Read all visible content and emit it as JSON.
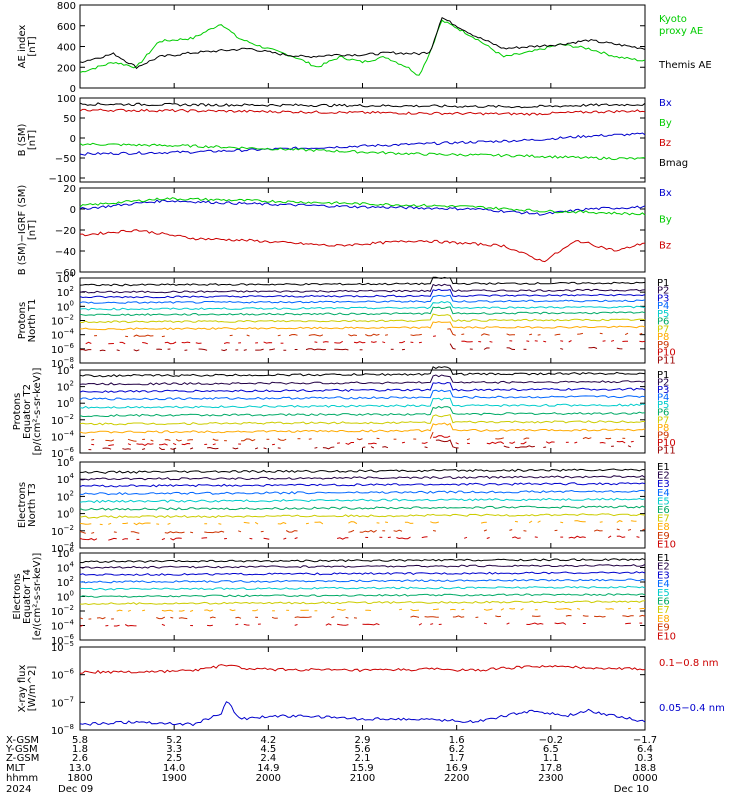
{
  "chart_data": [
    {
      "type": "line",
      "ylabel": "AE index [nT]",
      "ylim": [
        0,
        800
      ],
      "yticks": [
        "0",
        "200",
        "400",
        "600",
        "800"
      ],
      "series": [
        {
          "name": "Kyoto proxy AE",
          "color": "#00cc00",
          "display_name": "Kyoto proxy AE",
          "values": [
            [
              0,
              150
            ],
            [
              0.06,
              250
            ],
            [
              0.1,
              200
            ],
            [
              0.14,
              450
            ],
            [
              0.2,
              480
            ],
            [
              0.25,
              620
            ],
            [
              0.28,
              480
            ],
            [
              0.32,
              400
            ],
            [
              0.38,
              300
            ],
            [
              0.42,
              200
            ],
            [
              0.46,
              300
            ],
            [
              0.5,
              250
            ],
            [
              0.54,
              300
            ],
            [
              0.58,
              200
            ],
            [
              0.6,
              120
            ],
            [
              0.62,
              350
            ],
            [
              0.64,
              650
            ],
            [
              0.66,
              600
            ],
            [
              0.7,
              480
            ],
            [
              0.75,
              300
            ],
            [
              0.8,
              350
            ],
            [
              0.85,
              420
            ],
            [
              0.9,
              380
            ],
            [
              0.95,
              300
            ],
            [
              1,
              260
            ]
          ]
        },
        {
          "name": "Themis AE",
          "color": "#000000",
          "display_name": "Themis AE",
          "values": [
            [
              0,
              250
            ],
            [
              0.06,
              330
            ],
            [
              0.1,
              200
            ],
            [
              0.14,
              300
            ],
            [
              0.2,
              340
            ],
            [
              0.25,
              360
            ],
            [
              0.3,
              380
            ],
            [
              0.35,
              330
            ],
            [
              0.4,
              300
            ],
            [
              0.45,
              320
            ],
            [
              0.5,
              320
            ],
            [
              0.55,
              340
            ],
            [
              0.6,
              330
            ],
            [
              0.62,
              350
            ],
            [
              0.64,
              680
            ],
            [
              0.66,
              620
            ],
            [
              0.7,
              500
            ],
            [
              0.75,
              380
            ],
            [
              0.8,
              400
            ],
            [
              0.85,
              420
            ],
            [
              0.9,
              460
            ],
            [
              0.95,
              420
            ],
            [
              1,
              380
            ]
          ]
        }
      ]
    },
    {
      "type": "line",
      "ylabel": "B (SM) [nT]",
      "ylim": [
        -110,
        100
      ],
      "yticks": [
        "100",
        "50",
        "0",
        "−50",
        "−100"
      ],
      "series": [
        {
          "name": "Bx",
          "color": "#0000cc",
          "values": [
            [
              0,
              -40
            ],
            [
              0.2,
              -35
            ],
            [
              0.4,
              -25
            ],
            [
              0.6,
              -15
            ],
            [
              0.8,
              -5
            ],
            [
              0.9,
              5
            ],
            [
              1,
              10
            ]
          ]
        },
        {
          "name": "By",
          "color": "#00cc00",
          "values": [
            [
              0,
              -15
            ],
            [
              0.2,
              -20
            ],
            [
              0.4,
              -30
            ],
            [
              0.6,
              -40
            ],
            [
              0.8,
              -45
            ],
            [
              0.9,
              -50
            ],
            [
              1,
              -52
            ]
          ]
        },
        {
          "name": "Bz",
          "color": "#cc0000",
          "values": [
            [
              0,
              70
            ],
            [
              0.2,
              68
            ],
            [
              0.4,
              65
            ],
            [
              0.6,
              62
            ],
            [
              0.8,
              60
            ],
            [
              0.9,
              65
            ],
            [
              1,
              68
            ]
          ]
        },
        {
          "name": "Bmag",
          "color": "#000000",
          "values": [
            [
              0,
              85
            ],
            [
              0.2,
              83
            ],
            [
              0.4,
              82
            ],
            [
              0.6,
              80
            ],
            [
              0.8,
              78
            ],
            [
              0.9,
              82
            ],
            [
              1,
              84
            ]
          ]
        }
      ]
    },
    {
      "type": "line",
      "ylabel": "B (SM)−IGRF (SM) [nT]",
      "ylim": [
        -60,
        20
      ],
      "yticks": [
        "20",
        "0",
        "−20",
        "−40",
        "−60"
      ],
      "series": [
        {
          "name": "Bx",
          "color": "#0000cc",
          "values": [
            [
              0,
              0
            ],
            [
              0.15,
              8
            ],
            [
              0.3,
              5
            ],
            [
              0.5,
              2
            ],
            [
              0.7,
              0
            ],
            [
              0.82,
              -5
            ],
            [
              0.9,
              0
            ],
            [
              1,
              2
            ]
          ]
        },
        {
          "name": "By",
          "color": "#00cc00",
          "values": [
            [
              0,
              3
            ],
            [
              0.15,
              10
            ],
            [
              0.3,
              8
            ],
            [
              0.5,
              5
            ],
            [
              0.7,
              2
            ],
            [
              0.82,
              -2
            ],
            [
              0.9,
              -3
            ],
            [
              1,
              -5
            ]
          ]
        },
        {
          "name": "Bz",
          "color": "#cc0000",
          "values": [
            [
              0,
              -25
            ],
            [
              0.1,
              -20
            ],
            [
              0.2,
              -28
            ],
            [
              0.3,
              -30
            ],
            [
              0.45,
              -35
            ],
            [
              0.6,
              -30
            ],
            [
              0.75,
              -35
            ],
            [
              0.82,
              -50
            ],
            [
              0.88,
              -30
            ],
            [
              0.95,
              -40
            ],
            [
              1,
              -32
            ]
          ]
        }
      ]
    },
    {
      "type": "line",
      "ylabel": "Protons North T1",
      "ylog": true,
      "ylim": [
        -8,
        4
      ],
      "ytick_exps": [
        4,
        2,
        0,
        -2,
        -4,
        -6,
        -8
      ],
      "legend": [
        "P1",
        "P2",
        "P3",
        "P4",
        "P5",
        "P6",
        "P7",
        "P8",
        "P9",
        "P10",
        "P11"
      ],
      "legend_colors": [
        "#000000",
        "#220044",
        "#0000cc",
        "#0066ff",
        "#00cccc",
        "#00aa66",
        "#cccc00",
        "#ffaa00",
        "#cc3300",
        "#cc0000",
        "#990000"
      ],
      "levels": [
        3,
        2,
        1.3,
        0.5,
        -0.4,
        -1.2,
        -2.2,
        -3.2,
        -4.2,
        -5.2,
        -6.2
      ]
    },
    {
      "type": "line",
      "ylabel": "Protons Equator T2 [p/(cm²-s-sr-keV)]",
      "ylog": true,
      "ylim": [
        -6,
        4
      ],
      "ytick_exps": [
        4,
        2,
        0,
        -2,
        -4,
        -6
      ],
      "legend": [
        "P1",
        "P2",
        "P3",
        "P4",
        "P5",
        "P6",
        "P7",
        "P8",
        "P9",
        "P10",
        "P11"
      ],
      "legend_colors": [
        "#000000",
        "#220044",
        "#0000cc",
        "#0066ff",
        "#00cccc",
        "#00aa66",
        "#cccc00",
        "#ffaa00",
        "#cc3300",
        "#cc0000",
        "#990000"
      ],
      "levels": [
        3.3,
        2.3,
        1.4,
        0.5,
        -0.5,
        -1.5,
        -2.5,
        -3.5,
        -4.5,
        -5,
        -5.5
      ]
    },
    {
      "type": "line",
      "ylabel": "Electrons North T3",
      "ylog": true,
      "ylim": [
        -4,
        6
      ],
      "ytick_exps": [
        6,
        4,
        2,
        0,
        -2,
        -4
      ],
      "legend": [
        "E1",
        "E2",
        "E3",
        "E4",
        "E5",
        "E6",
        "E7",
        "E8",
        "E9",
        "E10"
      ],
      "legend_colors": [
        "#000000",
        "#220044",
        "#0000cc",
        "#0066ff",
        "#00cccc",
        "#00aa66",
        "#cccc00",
        "#ffaa00",
        "#cc3300",
        "#cc0000"
      ],
      "levels": [
        4.8,
        4,
        3.2,
        2.3,
        1.4,
        0.5,
        -0.4,
        -1.2,
        -2.2,
        -3
      ]
    },
    {
      "type": "line",
      "ylabel": "Electrons Equator T4 [e/(cm²-s-sr-keV)]",
      "ylog": true,
      "ylim": [
        -6,
        6
      ],
      "ytick_exps": [
        6,
        4,
        2,
        0,
        -2,
        -4,
        -6
      ],
      "legend": [
        "E1",
        "E2",
        "E3",
        "E4",
        "E5",
        "E6",
        "E7",
        "E8",
        "E9",
        "E10"
      ],
      "legend_colors": [
        "#000000",
        "#220044",
        "#0000cc",
        "#0066ff",
        "#00cccc",
        "#00aa66",
        "#cccc00",
        "#ffaa00",
        "#cc3300",
        "#cc0000"
      ],
      "levels": [
        4.8,
        4,
        3,
        2,
        1,
        0,
        -1,
        -2,
        -3,
        -4
      ]
    },
    {
      "type": "line",
      "ylabel": "X-ray flux [W/m^2]",
      "ylog": true,
      "ylim": [
        -8,
        -5
      ],
      "ytick_exps": [
        -5,
        -6,
        -7,
        -8
      ],
      "series": [
        {
          "name": "0.1−0.8 nm",
          "color": "#cc0000",
          "values": [
            [
              0,
              -5.9
            ],
            [
              0.1,
              -5.9
            ],
            [
              0.2,
              -5.85
            ],
            [
              0.26,
              -5.65
            ],
            [
              0.3,
              -5.8
            ],
            [
              0.5,
              -5.85
            ],
            [
              0.62,
              -5.8
            ],
            [
              0.7,
              -5.85
            ],
            [
              0.8,
              -5.7
            ],
            [
              0.9,
              -5.75
            ],
            [
              1,
              -5.8
            ]
          ]
        },
        {
          "name": "0.05−0.4 nm",
          "color": "#0000cc",
          "values": [
            [
              0,
              -7.8
            ],
            [
              0.1,
              -7.7
            ],
            [
              0.2,
              -7.8
            ],
            [
              0.25,
              -7.4
            ],
            [
              0.26,
              -6.9
            ],
            [
              0.28,
              -7.6
            ],
            [
              0.35,
              -7.5
            ],
            [
              0.4,
              -7.5
            ],
            [
              0.5,
              -7.6
            ],
            [
              0.6,
              -7.6
            ],
            [
              0.7,
              -7.7
            ],
            [
              0.8,
              -7.3
            ],
            [
              0.86,
              -7.5
            ],
            [
              0.9,
              -7.3
            ],
            [
              0.95,
              -7.5
            ],
            [
              1,
              -7.7
            ]
          ]
        }
      ]
    }
  ],
  "x_axis": {
    "row_labels": [
      "X-GSM",
      "Y-GSM",
      "Z-GSM",
      "MLT",
      "hhmm",
      "2024"
    ],
    "columns": [
      [
        "5.8",
        "1.8",
        "2.6",
        "13.0",
        "1800",
        "Dec 09"
      ],
      [
        "5.2",
        "3.3",
        "2.5",
        "14.0",
        "1900",
        ""
      ],
      [
        "4.2",
        "4.5",
        "2.4",
        "14.9",
        "2000",
        ""
      ],
      [
        "2.9",
        "5.6",
        "2.1",
        "15.9",
        "2100",
        ""
      ],
      [
        "1.6",
        "6.2",
        "1.7",
        "16.9",
        "2200",
        ""
      ],
      [
        "−0.2",
        "6.5",
        "1.1",
        "17.8",
        "2300",
        ""
      ],
      [
        "−1.7",
        "6.4",
        "0.3",
        "18.8",
        "0000",
        "Dec 10"
      ]
    ]
  }
}
